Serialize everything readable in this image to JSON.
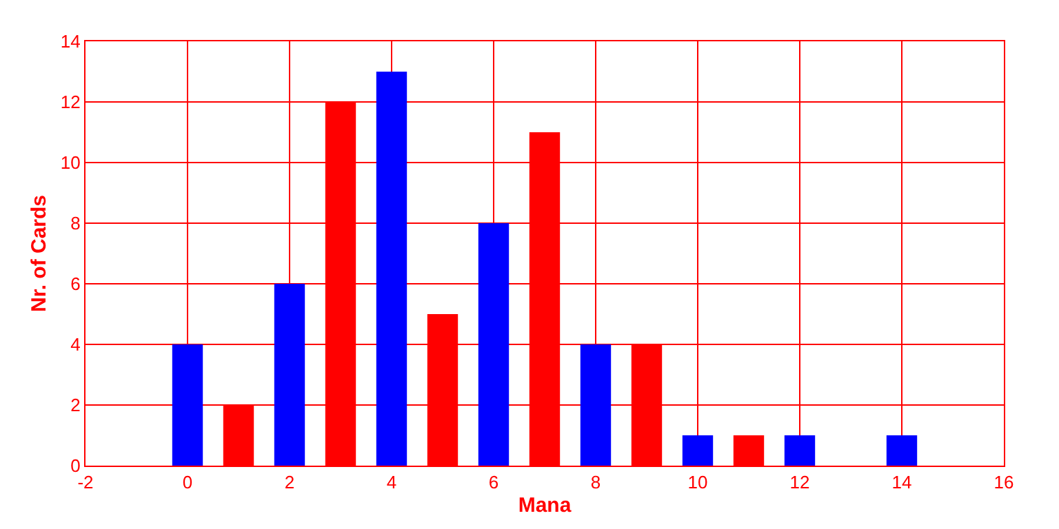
{
  "chart_data": {
    "type": "bar",
    "xlabel": "Mana",
    "ylabel": "Nr. of Cards",
    "x": [
      0,
      1,
      2,
      3,
      4,
      5,
      6,
      7,
      8,
      9,
      10,
      11,
      12,
      13,
      14,
      15
    ],
    "values": [
      4,
      2,
      6,
      12,
      13,
      5,
      8,
      11,
      4,
      4,
      1,
      1,
      1,
      0,
      1,
      0
    ],
    "colors": [
      "#0000ff",
      "#ff0000",
      "#0000ff",
      "#ff0000",
      "#0000ff",
      "#ff0000",
      "#0000ff",
      "#ff0000",
      "#0000ff",
      "#ff0000",
      "#0000ff",
      "#ff0000",
      "#0000ff",
      "#ff0000",
      "#0000ff",
      "#ff0000"
    ],
    "xlim": [
      -2,
      16
    ],
    "xticks": [
      -2,
      0,
      2,
      4,
      6,
      8,
      10,
      12,
      14,
      16
    ],
    "ylim": [
      0,
      14
    ],
    "yticks": [
      0,
      2,
      4,
      6,
      8,
      10,
      12,
      14
    ],
    "grid": true,
    "legend": false
  }
}
